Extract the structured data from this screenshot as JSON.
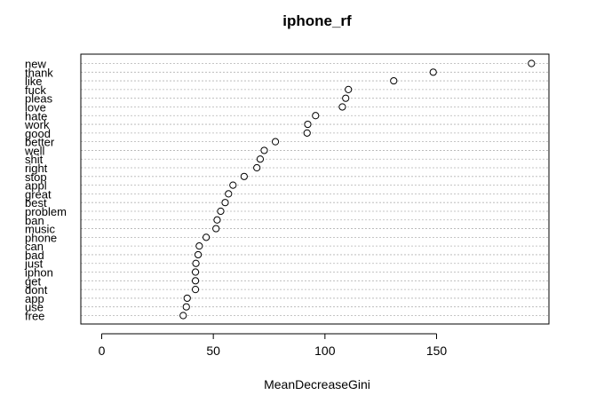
{
  "chart_data": {
    "type": "scatter",
    "title": "iphone_rf",
    "xlabel": "MeanDecreaseGini",
    "ylabel": "",
    "xlim": [
      -5,
      200
    ],
    "xticks": [
      0,
      50,
      100,
      150
    ],
    "grid": "horizontal dashed guide lines per category",
    "categories": [
      "new",
      "thank",
      "like",
      "fuck",
      "pleas",
      "love",
      "hate",
      "work",
      "good",
      "better",
      "well",
      "shit",
      "right",
      "stop",
      "appl",
      "great",
      "best",
      "problem",
      "ban",
      "music",
      "phone",
      "can",
      "bad",
      "just",
      "iphon",
      "get",
      "dont",
      "app",
      "use",
      "free"
    ],
    "values": [
      192.5,
      148.5,
      130.8,
      110.5,
      109.3,
      107.8,
      95.8,
      92.3,
      92.0,
      77.8,
      72.8,
      71.0,
      69.5,
      63.8,
      58.8,
      56.8,
      55.3,
      53.3,
      51.7,
      51.2,
      46.8,
      43.7,
      43.2,
      42.2,
      42.0,
      42.0,
      42.0,
      38.3,
      37.9,
      36.5
    ]
  }
}
